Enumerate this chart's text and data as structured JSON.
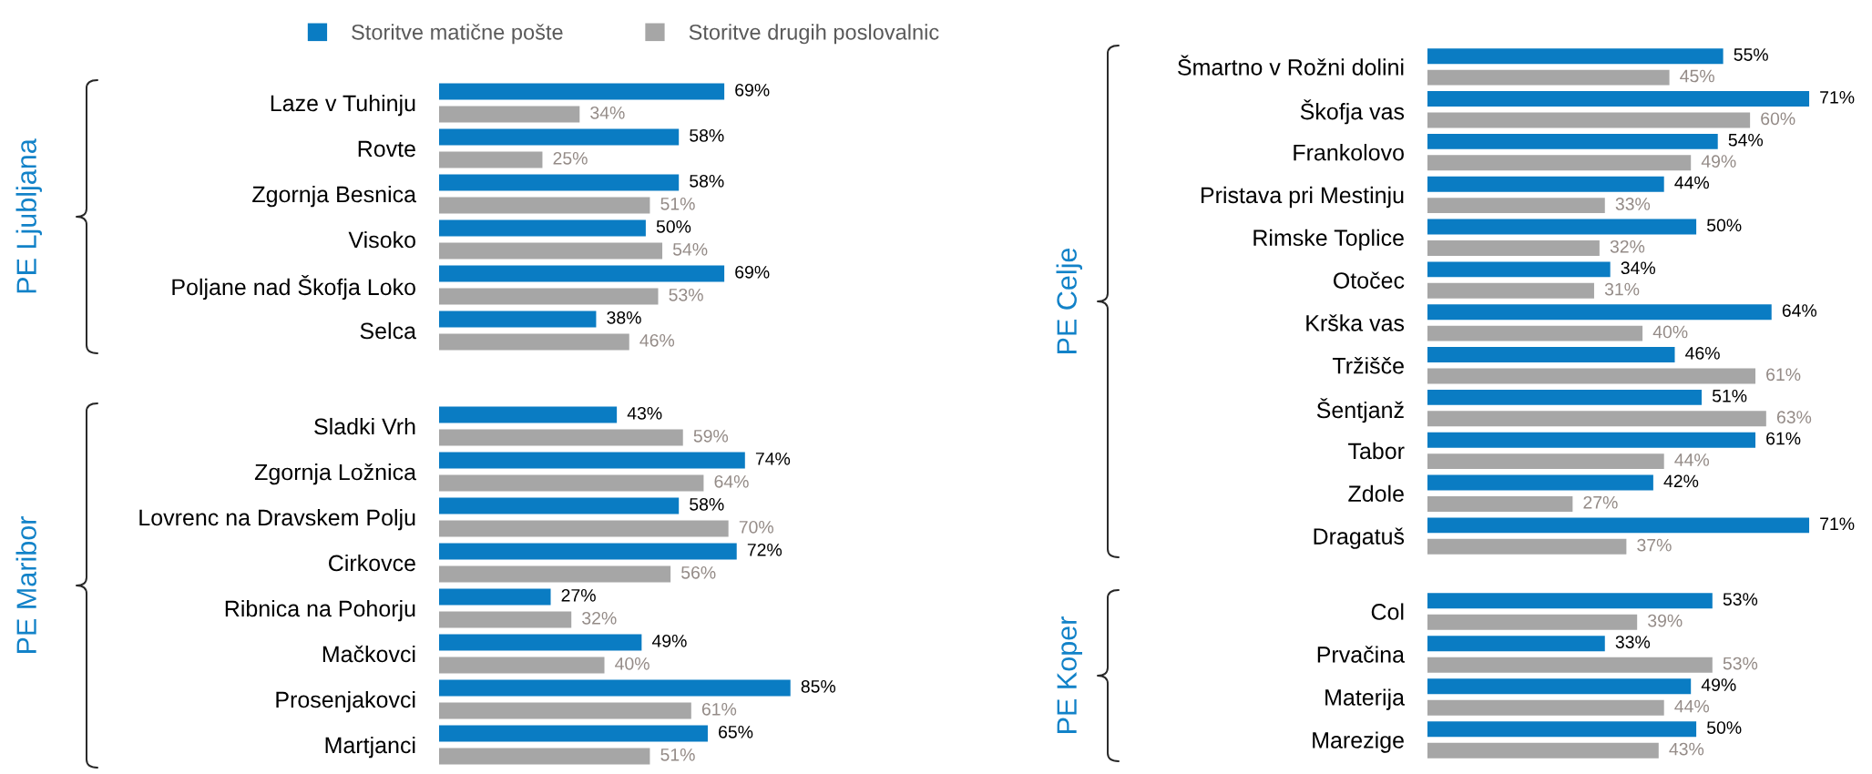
{
  "chart_data": [
    {
      "type": "bar",
      "orientation": "horizontal",
      "ylabel": "PE Ljubljana",
      "categories": [
        "Laze v Tuhinju",
        "Rovte",
        "Zgornja Besnica",
        "Visoko",
        "Poljane nad Škofja Loko",
        "Selca"
      ],
      "series": [
        {
          "name": "Storitve matične pošte",
          "color": "#0a7cc3",
          "values": [
            69,
            58,
            58,
            50,
            69,
            38
          ],
          "value_labels": [
            "69%",
            "58%",
            "58%",
            "50%",
            "69%",
            "38%"
          ]
        },
        {
          "name": "Storitve drugih poslovalnic",
          "color": "#a6a6a6",
          "values": [
            34,
            25,
            51,
            54,
            53,
            46
          ],
          "value_labels": [
            "34%",
            "25%",
            "51%",
            "54%",
            "53%",
            "46%"
          ]
        }
      ],
      "tick_labels": "y",
      "legend": "top"
    },
    {
      "type": "bar",
      "orientation": "horizontal",
      "ylabel": "PE Maribor",
      "categories": [
        "Sladki Vrh",
        "Zgornja Ložnica",
        "Lovrenc na Dravskem Polju",
        "Cirkovce",
        "Ribnica na Pohorju",
        "Mačkovci",
        "Prosenjakovci",
        "Martjanci"
      ],
      "series": [
        {
          "color": "#0a7cc3",
          "values": [
            43,
            74,
            58,
            72,
            27,
            49,
            85,
            65
          ],
          "value_labels": [
            "43%",
            "74%",
            "58%",
            "72%",
            "27%",
            "49%",
            "85%",
            "65%"
          ]
        },
        {
          "color": "#a6a6a6",
          "values": [
            59,
            64,
            70,
            56,
            32,
            40,
            61,
            51
          ],
          "value_labels": [
            "59%",
            "64%",
            "70%",
            "56%",
            "32%",
            "40%",
            "61%",
            "51%"
          ]
        }
      ],
      "tick_labels": "y"
    },
    {
      "type": "bar",
      "orientation": "horizontal",
      "ylabel": "PE Celje",
      "categories": [
        "Šmartno v Rožni dolini",
        "Škofja vas",
        "Frankolovo",
        "Pristava pri Mestinju",
        "Rimske Toplice",
        "Otočec",
        "Krška vas",
        "Tržišče",
        "Šentjanž",
        "Tabor",
        "Zdole",
        "Dragatuš"
      ],
      "series": [
        {
          "color": "#0a7cc3",
          "values": [
            55,
            71,
            54,
            44,
            50,
            34,
            64,
            46,
            51,
            61,
            42,
            71
          ],
          "value_labels": [
            "55%",
            "71%",
            "54%",
            "44%",
            "50%",
            "34%",
            "64%",
            "46%",
            "51%",
            "61%",
            "42%",
            "71%"
          ]
        },
        {
          "color": "#a6a6a6",
          "values": [
            45,
            60,
            49,
            33,
            32,
            31,
            40,
            61,
            63,
            44,
            27,
            37
          ],
          "value_labels": [
            "45%",
            "60%",
            "49%",
            "33%",
            "32%",
            "31%",
            "40%",
            "61%",
            "63%",
            "44%",
            "27%",
            "37%"
          ]
        }
      ],
      "tick_labels": "y"
    },
    {
      "type": "bar",
      "orientation": "horizontal",
      "ylabel": "PE Koper",
      "categories": [
        "Col",
        "Prvačina",
        "Materija",
        "Marezige"
      ],
      "series": [
        {
          "color": "#0a7cc3",
          "values": [
            53,
            33,
            49,
            50
          ],
          "value_labels": [
            "53%",
            "33%",
            "49%",
            "50%"
          ]
        },
        {
          "color": "#a6a6a6",
          "values": [
            39,
            53,
            44,
            43
          ],
          "value_labels": [
            "39%",
            "53%",
            "44%",
            "43%"
          ]
        }
      ],
      "tick_labels": "y"
    }
  ]
}
